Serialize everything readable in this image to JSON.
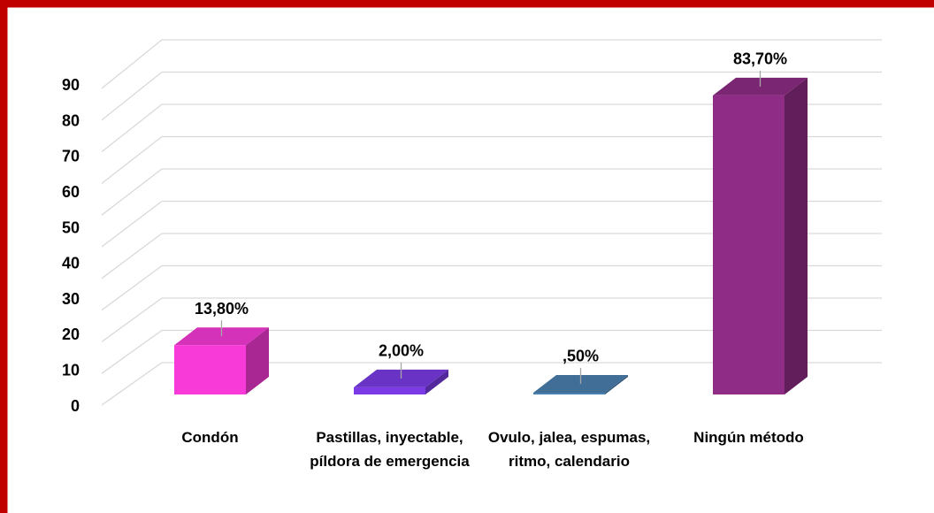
{
  "chart_data": {
    "type": "bar3d",
    "categories": [
      "Condón",
      "Pastillas, inyectable, píldora de emergencia",
      "Ovulo, jalea, espumas, ritmo, calendario",
      "Ningún método"
    ],
    "values": [
      13.8,
      2,
      0.5,
      83.7
    ],
    "value_labels": [
      "13,80%",
      "2,00%",
      ",50%",
      "83,70%"
    ],
    "colors": [
      "#f83ad8",
      "#7a3be6",
      "#4a80b0",
      "#8e2c86"
    ],
    "ylim": [
      0,
      100
    ],
    "yticks": [
      0,
      10,
      20,
      30,
      40,
      50,
      60,
      70,
      80,
      90
    ],
    "grid": true
  }
}
